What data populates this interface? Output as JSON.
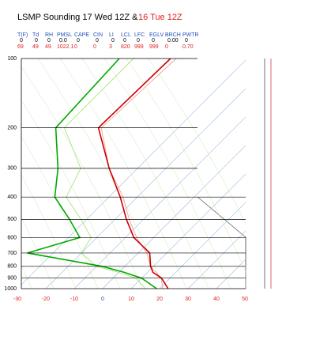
{
  "chart_data": {
    "type": "skewt",
    "title": "LSMP Sounding 17 Wed 12Z &",
    "title_previous": "16 Tue 12Z",
    "indices": {
      "labels": [
        "T(F)",
        "Td",
        "RH",
        "PMSL",
        "CAPE",
        "CIN",
        "LI",
        "LCL",
        "LFC",
        "EGLV",
        "BRCH",
        "PWTR"
      ],
      "current": [
        "0",
        "0",
        "0",
        "0.0",
        "0",
        "0",
        "0",
        "0",
        "0",
        "0",
        "0.00",
        "0"
      ],
      "previous": [
        "69",
        "49",
        "49",
        "1022.1",
        "0",
        "0",
        "3",
        "820",
        "999",
        "999",
        "0",
        "0.70"
      ]
    },
    "levels": [
      100,
      200,
      300,
      400,
      500,
      600,
      700,
      800,
      850,
      900,
      1000
    ],
    "series": [
      {
        "color": "#f4a0a0",
        "values": [
          -55,
          -57,
          -40,
          -25,
          -15,
          -6,
          3,
          9,
          13,
          17,
          21
        ]
      },
      {
        "color": "#a8e67a",
        "values": [
          -70,
          -70,
          -50,
          -45,
          -32,
          -22,
          -20,
          -10,
          0,
          8,
          15
        ]
      },
      {
        "color": "#cc0000",
        "values": [
          -57,
          -58,
          -40,
          -26,
          -16,
          -7,
          4,
          9,
          12,
          17,
          23
        ]
      },
      {
        "color": "#00aa00",
        "values": [
          -75,
          -73,
          -58,
          -49,
          -36,
          -26,
          -39,
          -8,
          2,
          10,
          19
        ]
      }
    ],
    "ylim": [
      100,
      1000
    ],
    "yticks": [
      100,
      200,
      300,
      400,
      500,
      600,
      700,
      800,
      900,
      1000
    ],
    "log_y": true,
    "xlim": [
      -30,
      50
    ],
    "xticks": [
      -30,
      -20,
      -10,
      0,
      10,
      20,
      30,
      40,
      50
    ]
  }
}
